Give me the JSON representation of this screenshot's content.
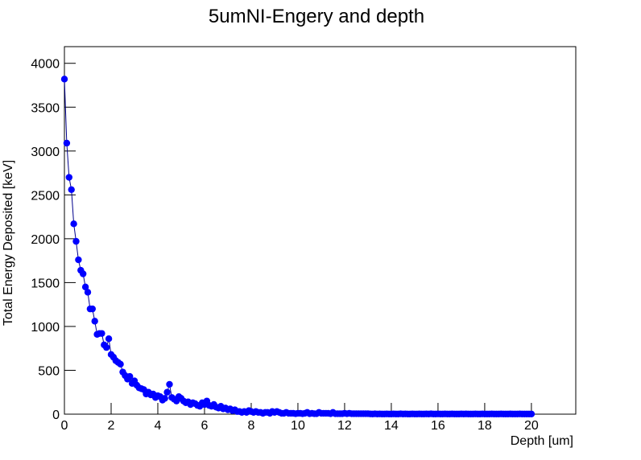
{
  "chart_data": {
    "type": "line",
    "title": "5umNI-Engery and depth",
    "x_label": "Depth [um]",
    "y_label": "Total Energy Deposited [keV]",
    "x": [
      0,
      0.1,
      0.2,
      0.3,
      0.4,
      0.5,
      0.6,
      0.7,
      0.8,
      0.9,
      1,
      1.1,
      1.2,
      1.3,
      1.4,
      1.5,
      1.6,
      1.7,
      1.8,
      1.9,
      2,
      2.1,
      2.2,
      2.3,
      2.4,
      2.5,
      2.6,
      2.7,
      2.8,
      2.9,
      3,
      3.1,
      3.2,
      3.3,
      3.4,
      3.5,
      3.6,
      3.7,
      3.8,
      3.9,
      4,
      4.1,
      4.2,
      4.3,
      4.4,
      4.5,
      4.6,
      4.7,
      4.8,
      4.9,
      5,
      5.1,
      5.2,
      5.3,
      5.4,
      5.5,
      5.6,
      5.7,
      5.8,
      5.9,
      6,
      6.1,
      6.2,
      6.3,
      6.4,
      6.5,
      6.6,
      6.7,
      6.8,
      6.9,
      7,
      7.1,
      7.2,
      7.3,
      7.4,
      7.5,
      7.6,
      7.7,
      7.8,
      7.9,
      8,
      8.1,
      8.2,
      8.3,
      8.4,
      8.5,
      8.6,
      8.7,
      8.8,
      8.9,
      9,
      9.1,
      9.2,
      9.3,
      9.4,
      9.5,
      9.6,
      9.7,
      9.8,
      9.9,
      10,
      10.1,
      10.2,
      10.3,
      10.4,
      10.5,
      10.6,
      10.7,
      10.8,
      10.9,
      11,
      11.1,
      11.2,
      11.3,
      11.4,
      11.5,
      11.6,
      11.7,
      11.8,
      11.9,
      12,
      12.1,
      12.2,
      12.3,
      12.4,
      12.5,
      12.6,
      12.7,
      12.8,
      12.9,
      13,
      13.1,
      13.2,
      13.3,
      13.4,
      13.5,
      13.6,
      13.7,
      13.8,
      13.9,
      14,
      14.1,
      14.2,
      14.3,
      14.4,
      14.5,
      14.6,
      14.7,
      14.8,
      14.9,
      15,
      15.1,
      15.2,
      15.3,
      15.4,
      15.5,
      15.6,
      15.7,
      15.8,
      15.9,
      16,
      16.1,
      16.2,
      16.3,
      16.4,
      16.5,
      16.6,
      16.7,
      16.8,
      16.9,
      17,
      17.1,
      17.2,
      17.3,
      17.4,
      17.5,
      17.6,
      17.7,
      17.8,
      17.9,
      18,
      18.1,
      18.2,
      18.3,
      18.4,
      18.5,
      18.6,
      18.7,
      18.8,
      18.9,
      19,
      19.1,
      19.2,
      19.3,
      19.4,
      19.5,
      19.6,
      19.7,
      19.8,
      19.9,
      20
    ],
    "values": [
      3820,
      3090,
      2700,
      2560,
      2170,
      1970,
      1760,
      1640,
      1600,
      1450,
      1390,
      1200,
      1200,
      1060,
      910,
      920,
      920,
      790,
      760,
      860,
      680,
      650,
      610,
      590,
      570,
      480,
      440,
      400,
      430,
      350,
      380,
      330,
      300,
      290,
      280,
      230,
      250,
      220,
      230,
      190,
      210,
      200,
      160,
      180,
      250,
      340,
      190,
      170,
      150,
      200,
      180,
      150,
      130,
      140,
      110,
      130,
      120,
      100,
      90,
      130,
      110,
      150,
      100,
      90,
      110,
      80,
      70,
      90,
      60,
      70,
      50,
      60,
      40,
      50,
      30,
      30,
      20,
      30,
      20,
      40,
      30,
      20,
      30,
      20,
      20,
      10,
      20,
      20,
      10,
      30,
      20,
      30,
      20,
      10,
      10,
      20,
      10,
      10,
      10,
      5,
      10,
      10,
      5,
      10,
      20,
      5,
      10,
      5,
      5,
      20,
      10,
      10,
      10,
      10,
      5,
      20,
      5,
      5,
      5,
      5,
      10,
      5,
      10,
      5,
      5,
      5,
      5,
      5,
      5,
      5,
      5,
      3,
      2,
      4,
      2,
      3,
      2,
      2,
      3,
      2,
      2,
      3,
      2,
      2,
      4,
      2,
      3,
      2,
      2,
      3,
      2,
      2,
      3,
      2,
      2,
      3,
      2,
      4,
      2,
      2,
      3,
      2,
      2,
      3,
      2,
      2,
      3,
      2,
      2,
      2,
      3,
      2,
      3,
      2,
      2,
      2,
      3,
      2,
      2,
      3,
      2,
      2,
      2,
      3,
      2,
      2,
      2,
      3,
      2,
      2,
      2,
      3,
      2,
      2,
      2,
      3,
      2,
      2,
      2,
      2,
      2
    ],
    "color": "#0000ff",
    "line_color": "#00008b",
    "xlim": [
      0,
      21.9
    ],
    "xticks": [
      0,
      2,
      4,
      6,
      8,
      10,
      12,
      14,
      16,
      18,
      20
    ],
    "ylim": [
      0,
      4190
    ],
    "yticks": [
      0,
      500,
      1000,
      1500,
      2000,
      2500,
      3000,
      3500,
      4000
    ]
  }
}
